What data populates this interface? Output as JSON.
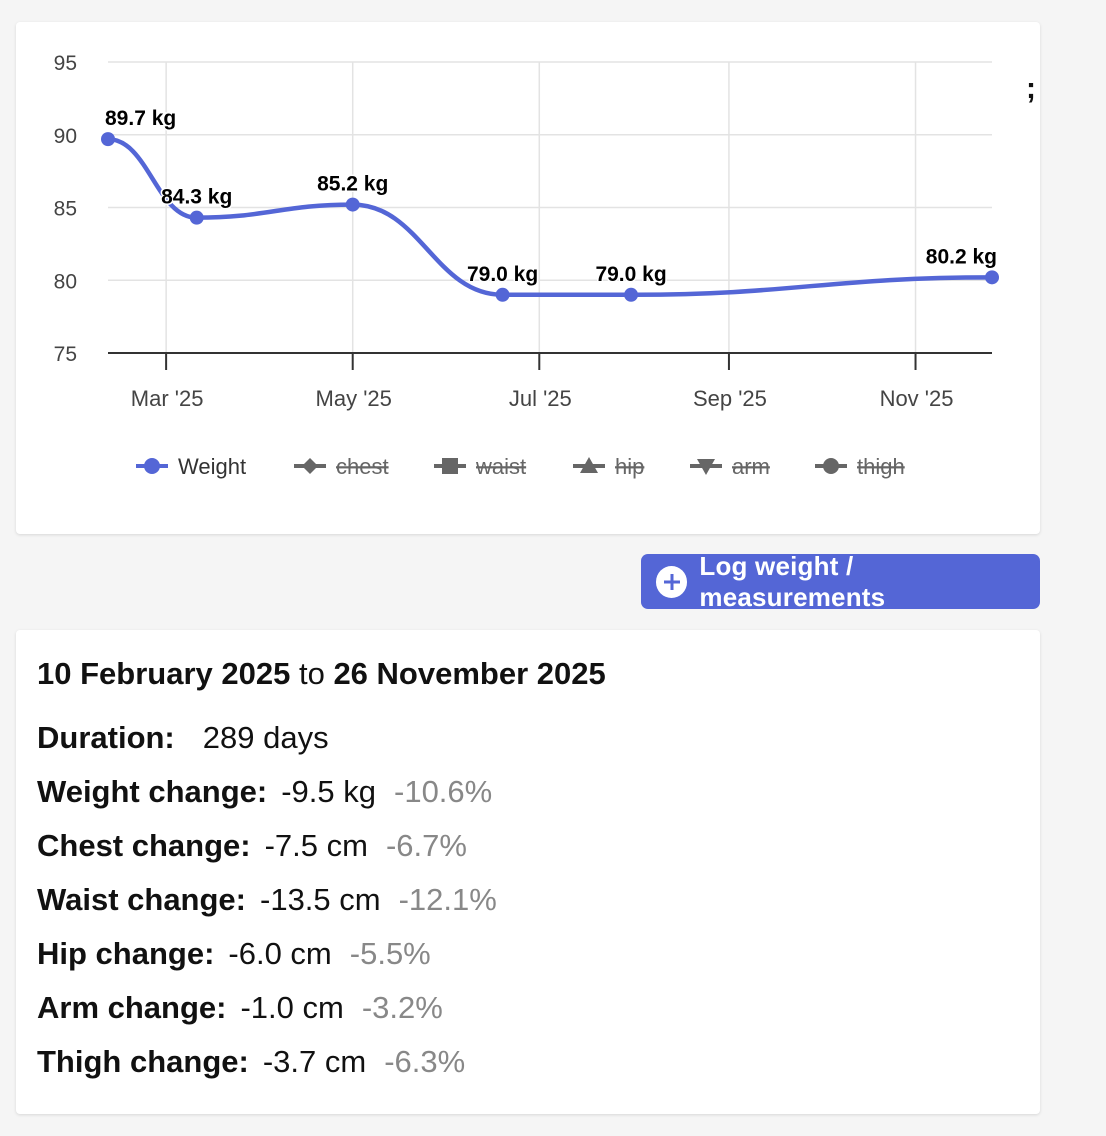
{
  "chart_data": {
    "type": "line",
    "series": [
      {
        "name": "Weight",
        "color": "#5466d6",
        "points": [
          {
            "date": "2025-02-10",
            "value": 89.7,
            "label": "89.7 kg"
          },
          {
            "date": "2025-03-11",
            "value": 84.3,
            "label": "84.3 kg"
          },
          {
            "date": "2025-05-01",
            "value": 85.2,
            "label": "85.2 kg"
          },
          {
            "date": "2025-06-19",
            "value": 79.0,
            "label": "79.0 kg"
          },
          {
            "date": "2025-07-31",
            "value": 79.0,
            "label": "79.0 kg"
          },
          {
            "date": "2025-11-26",
            "value": 80.2,
            "label": "80.2 kg"
          }
        ]
      }
    ],
    "ylim": [
      75,
      95
    ],
    "yticks": [
      "75",
      "80",
      "85",
      "90",
      "95"
    ],
    "xlim": [
      "2025-02-10",
      "2025-11-26"
    ],
    "xticks": [
      {
        "date": "2025-03-01",
        "label": "Mar '25"
      },
      {
        "date": "2025-05-01",
        "label": "May '25"
      },
      {
        "date": "2025-07-01",
        "label": "Jul '25"
      },
      {
        "date": "2025-09-01",
        "label": "Sep '25"
      },
      {
        "date": "2025-11-01",
        "label": "Nov '25"
      }
    ],
    "grid": true,
    "legend_position": "bottom",
    "legend": [
      {
        "label": "Weight",
        "marker": "circle",
        "active": true
      },
      {
        "label": "chest",
        "marker": "diamond",
        "active": false
      },
      {
        "label": "waist",
        "marker": "square",
        "active": false
      },
      {
        "label": "hip",
        "marker": "triangle",
        "active": false
      },
      {
        "label": "arm",
        "marker": "triangle-down",
        "active": false
      },
      {
        "label": "thigh",
        "marker": "circle",
        "active": false
      }
    ]
  },
  "stray_text": ";",
  "log_button": {
    "label": "Log weight / measurements",
    "icon": "plus-circle-icon"
  },
  "summary": {
    "start": "10 February 2025",
    "connector": "to",
    "end": "26 November 2025",
    "rows": [
      {
        "label": "Duration:",
        "value": "289 days",
        "percent": ""
      },
      {
        "label": "Weight change:",
        "value": "-9.5 kg",
        "percent": "-10.6%"
      },
      {
        "label": "Chest change:",
        "value": "-7.5 cm",
        "percent": "-6.7%"
      },
      {
        "label": "Waist change:",
        "value": "-13.5 cm",
        "percent": "-12.1%"
      },
      {
        "label": "Hip change:",
        "value": "-6.0 cm",
        "percent": "-5.5%"
      },
      {
        "label": "Arm change:",
        "value": "-1.0 cm",
        "percent": "-3.2%"
      },
      {
        "label": "Thigh change:",
        "value": "-3.7 cm",
        "percent": "-6.3%"
      }
    ]
  },
  "colors": {
    "accent": "#5466d6",
    "inactive": "#666666",
    "muted": "#888888"
  }
}
